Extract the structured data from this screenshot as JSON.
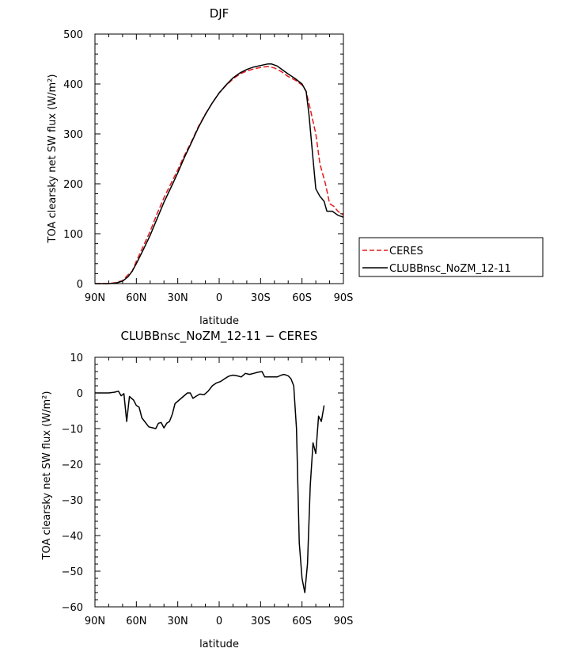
{
  "chart_data": [
    {
      "type": "line",
      "title": "DJF",
      "xlabel": "latitude",
      "ylabel": "TOA clearsky net SW flux (W/m²)",
      "xlim": [
        90,
        -90
      ],
      "ylim": [
        0,
        500
      ],
      "xticks": [
        90,
        60,
        30,
        0,
        -30,
        -60,
        -90
      ],
      "xtick_labels": [
        "90N",
        "60N",
        "30N",
        "0",
        "30S",
        "60S",
        "90S"
      ],
      "yticks": [
        0,
        100,
        200,
        300,
        400,
        500
      ],
      "ytick_labels": [
        "0",
        "100",
        "200",
        "300",
        "400",
        "500"
      ],
      "legend": {
        "placement": "right",
        "entries": [
          "CERES",
          "CLUBBnsc_NoZM_12-11"
        ]
      },
      "series": [
        {
          "name": "CERES",
          "color": "#e31a1c",
          "dash": "dashed",
          "points": [
            [
              90,
              0
            ],
            [
              85,
              0
            ],
            [
              80,
              0
            ],
            [
              75,
              2
            ],
            [
              70,
              6
            ],
            [
              66,
              18
            ],
            [
              63,
              25
            ],
            [
              60,
              45
            ],
            [
              55,
              75
            ],
            [
              50,
              105
            ],
            [
              45,
              140
            ],
            [
              40,
              172
            ],
            [
              35,
              200
            ],
            [
              30,
              228
            ],
            [
              25,
              258
            ],
            [
              20,
              285
            ],
            [
              15,
              315
            ],
            [
              10,
              340
            ],
            [
              5,
              362
            ],
            [
              0,
              382
            ],
            [
              -5,
              397
            ],
            [
              -10,
              410
            ],
            [
              -15,
              420
            ],
            [
              -20,
              426
            ],
            [
              -25,
              430
            ],
            [
              -30,
              433
            ],
            [
              -35,
              435
            ],
            [
              -40,
              432
            ],
            [
              -45,
              425
            ],
            [
              -50,
              415
            ],
            [
              -55,
              408
            ],
            [
              -60,
              398
            ],
            [
              -63,
              385
            ],
            [
              -66,
              350
            ],
            [
              -70,
              300
            ],
            [
              -73,
              240
            ],
            [
              -77,
              200
            ],
            [
              -80,
              160
            ],
            [
              -83,
              155
            ],
            [
              -86,
              145
            ],
            [
              -90,
              137
            ]
          ]
        },
        {
          "name": "CLUBBnsc_NoZM_12-11",
          "color": "#000000",
          "dash": "solid",
          "points": [
            [
              90,
              0
            ],
            [
              85,
              0
            ],
            [
              80,
              0
            ],
            [
              75,
              1
            ],
            [
              70,
              5
            ],
            [
              66,
              14
            ],
            [
              63,
              25
            ],
            [
              60,
              40
            ],
            [
              55,
              68
            ],
            [
              50,
              97
            ],
            [
              45,
              130
            ],
            [
              40,
              163
            ],
            [
              35,
              192
            ],
            [
              30,
              222
            ],
            [
              25,
              254
            ],
            [
              20,
              283
            ],
            [
              15,
              313
            ],
            [
              10,
              339
            ],
            [
              5,
              362
            ],
            [
              0,
              382
            ],
            [
              -5,
              398
            ],
            [
              -10,
              412
            ],
            [
              -15,
              422
            ],
            [
              -20,
              429
            ],
            [
              -25,
              434
            ],
            [
              -30,
              437
            ],
            [
              -35,
              440
            ],
            [
              -38,
              440
            ],
            [
              -42,
              436
            ],
            [
              -45,
              430
            ],
            [
              -50,
              420
            ],
            [
              -55,
              411
            ],
            [
              -60,
              400
            ],
            [
              -63,
              385
            ],
            [
              -65,
              340
            ],
            [
              -68,
              250
            ],
            [
              -70,
              190
            ],
            [
              -73,
              175
            ],
            [
              -76,
              165
            ],
            [
              -78,
              145
            ],
            [
              -82,
              145
            ],
            [
              -86,
              137
            ],
            [
              -90,
              133
            ]
          ]
        }
      ]
    },
    {
      "type": "line",
      "title": "CLUBBnsc_NoZM_12-11 − CERES",
      "xlabel": "latitude",
      "ylabel": "TOA clearsky net SW flux (W/m²)",
      "xlim": [
        90,
        -90
      ],
      "ylim": [
        -60,
        10
      ],
      "xticks": [
        90,
        60,
        30,
        0,
        -30,
        -60,
        -90
      ],
      "xtick_labels": [
        "90N",
        "60N",
        "30N",
        "0",
        "30S",
        "60S",
        "90S"
      ],
      "yticks": [
        10,
        0,
        -10,
        -20,
        -30,
        -40,
        -50,
        -60
      ],
      "ytick_labels": [
        "10",
        "0",
        "−10",
        "−20",
        "−30",
        "−40",
        "−50",
        "−60"
      ],
      "series": [
        {
          "color": "#000000",
          "dash": "solid",
          "points": [
            [
              90,
              0
            ],
            [
              85,
              0
            ],
            [
              80,
              0
            ],
            [
              76,
              0.2
            ],
            [
              73,
              0.5
            ],
            [
              71,
              -0.8
            ],
            [
              69,
              -0.2
            ],
            [
              67,
              -8
            ],
            [
              65,
              -1
            ],
            [
              62,
              -2
            ],
            [
              60,
              -3.5
            ],
            [
              58,
              -4
            ],
            [
              56,
              -7
            ],
            [
              54,
              -8
            ],
            [
              51,
              -9.5
            ],
            [
              48,
              -9.8
            ],
            [
              46,
              -10
            ],
            [
              44,
              -8.5
            ],
            [
              42,
              -8.3
            ],
            [
              40,
              -9.8
            ],
            [
              38,
              -8.5
            ],
            [
              36,
              -8
            ],
            [
              34,
              -6
            ],
            [
              32,
              -3
            ],
            [
              29,
              -2
            ],
            [
              26,
              -1
            ],
            [
              23,
              0
            ],
            [
              21,
              0
            ],
            [
              19,
              -1.5
            ],
            [
              17,
              -1
            ],
            [
              14,
              -0.3
            ],
            [
              11,
              -0.5
            ],
            [
              8,
              0.5
            ],
            [
              5,
              2
            ],
            [
              2,
              2.8
            ],
            [
              -1,
              3.2
            ],
            [
              -4,
              4
            ],
            [
              -7,
              4.7
            ],
            [
              -10,
              5
            ],
            [
              -13,
              4.8
            ],
            [
              -16,
              4.5
            ],
            [
              -19,
              5.5
            ],
            [
              -22,
              5.2
            ],
            [
              -25,
              5.5
            ],
            [
              -28,
              5.8
            ],
            [
              -31,
              6
            ],
            [
              -33,
              4.5
            ],
            [
              -36,
              4.5
            ],
            [
              -39,
              4.5
            ],
            [
              -42,
              4.5
            ],
            [
              -45,
              5
            ],
            [
              -47,
              5.2
            ],
            [
              -50,
              4.8
            ],
            [
              -52,
              4
            ],
            [
              -54,
              2
            ],
            [
              -56,
              -10
            ],
            [
              -58,
              -42
            ],
            [
              -60,
              -52
            ],
            [
              -62,
              -56
            ],
            [
              -64,
              -48
            ],
            [
              -66,
              -26
            ],
            [
              -68,
              -14
            ],
            [
              -70,
              -17
            ],
            [
              -72,
              -6.5
            ],
            [
              -74,
              -8
            ],
            [
              -76,
              -3.5
            ]
          ]
        }
      ]
    }
  ]
}
